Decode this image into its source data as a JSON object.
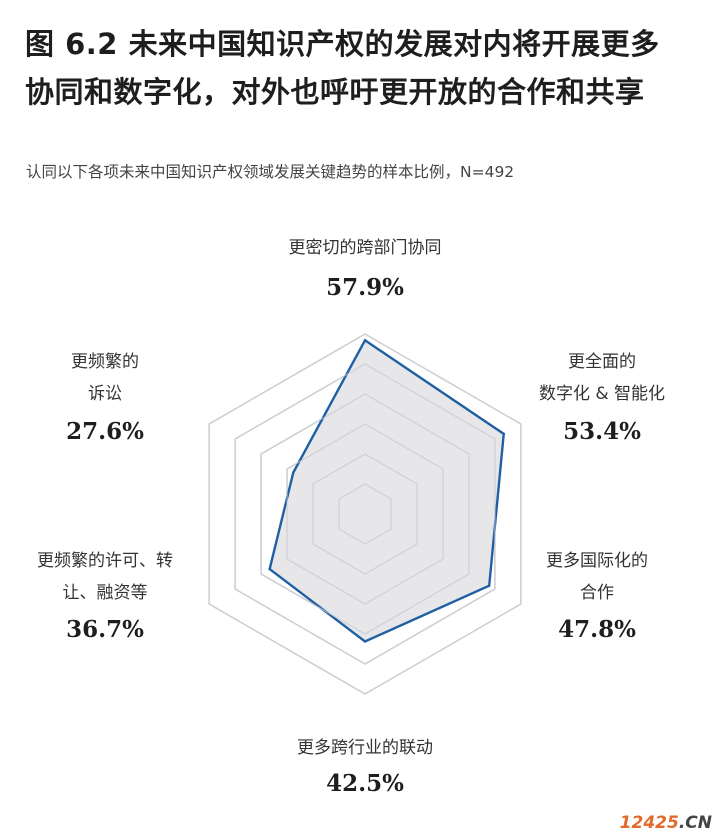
{
  "title_line1": "图 6.2 未来中国知识产权的发展对内将开展更多",
  "title_line2": "协同和数字化，对外也呼吁更开放的合作和共享",
  "subtitle": "认同以下各项未来中国知识产权领域发展关键趋势的样本比例，N=492",
  "watermark": {
    "digits": "12425",
    "suffix": ".CN"
  },
  "colors": {
    "series_line": "#1f5fa3",
    "series_fill": "#e3e3e5",
    "grid": "#d6d6d6"
  },
  "chart_data": {
    "type": "radar",
    "rmax": 60,
    "grid_levels": [
      10,
      20,
      30,
      40,
      50,
      60
    ],
    "axes": [
      {
        "label_lines": [
          "更密切的跨部门协同"
        ],
        "value": 57.9,
        "value_label": "57.9%"
      },
      {
        "label_lines": [
          "更全面的",
          "数字化 & 智能化"
        ],
        "value": 53.4,
        "value_label": "53.4%"
      },
      {
        "label_lines": [
          "更多国际化的",
          "合作"
        ],
        "value": 47.8,
        "value_label": "47.8%"
      },
      {
        "label_lines": [
          "更多跨行业的联动"
        ],
        "value": 42.5,
        "value_label": "42.5%"
      },
      {
        "label_lines": [
          "更频繁的许可、转",
          "让、融资等"
        ],
        "value": 36.7,
        "value_label": "36.7%"
      },
      {
        "label_lines": [
          "更频繁的",
          "诉讼"
        ],
        "value": 27.6,
        "value_label": "27.6%"
      }
    ]
  }
}
